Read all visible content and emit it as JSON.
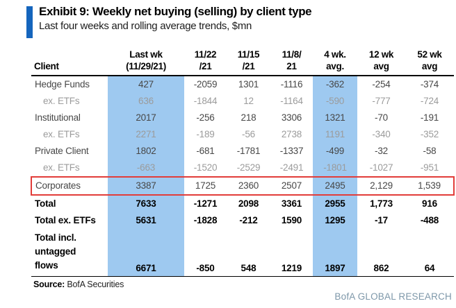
{
  "header": {
    "exhibit_title": "Exhibit 9: Weekly net buying (selling) by client type",
    "subtitle": "Last four weeks and rolling average trends, $mn"
  },
  "table": {
    "columns": [
      {
        "line1": "",
        "line2": "Client"
      },
      {
        "line1": "Last wk",
        "line2": "(11/29/21)",
        "highlight": true
      },
      {
        "line1": "11/22",
        "line2": "/21"
      },
      {
        "line1": "11/15",
        "line2": "/21"
      },
      {
        "line1": "11/8/",
        "line2": "21"
      },
      {
        "line1": "4 wk.",
        "line2": "avg.",
        "highlight": true
      },
      {
        "line1": "12 wk",
        "line2": "avg"
      },
      {
        "line1": "52 wk",
        "line2": "avg"
      }
    ],
    "rows": [
      {
        "client": "Hedge Funds",
        "style": "main",
        "values": [
          "427",
          "-2059",
          "1301",
          "-1116",
          "-362",
          "-254",
          "-374"
        ]
      },
      {
        "client": "ex. ETFs",
        "style": "sub",
        "values": [
          "636",
          "-1844",
          "12",
          "-1164",
          "-590",
          "-777",
          "-724"
        ]
      },
      {
        "client": "Institutional",
        "style": "main",
        "values": [
          "2017",
          "-256",
          "218",
          "3306",
          "1321",
          "-70",
          "-191"
        ]
      },
      {
        "client": "ex. ETFs",
        "style": "sub",
        "values": [
          "2271",
          "-189",
          "-56",
          "2738",
          "1191",
          "-340",
          "-352"
        ]
      },
      {
        "client": "Private Client",
        "style": "main",
        "values": [
          "1802",
          "-681",
          "-1781",
          "-1337",
          "-499",
          "-32",
          "-58"
        ]
      },
      {
        "client": "ex. ETFs",
        "style": "sub",
        "values": [
          "-663",
          "-1520",
          "-2529",
          "-2491",
          "-1801",
          "-1027",
          "-951"
        ]
      },
      {
        "client": "Corporates",
        "style": "main",
        "highlight_box": true,
        "values": [
          "3387",
          "1725",
          "2360",
          "2507",
          "2495",
          "2,129",
          "1,539"
        ]
      },
      {
        "client": "Total",
        "style": "total",
        "values": [
          "7633",
          "-1271",
          "2098",
          "3361",
          "2955",
          "1,773",
          "916"
        ]
      },
      {
        "client": "Total ex. ETFs",
        "style": "total",
        "values": [
          "5631",
          "-1828",
          "-212",
          "1590",
          "1295",
          "-17",
          "-488"
        ]
      },
      {
        "client": "Total incl. untagged flows",
        "style": "total",
        "label_lines": [
          "Total incl.",
          "untagged",
          "flows"
        ],
        "values": [
          "6671",
          "-850",
          "548",
          "1219",
          "1897",
          "862",
          "64"
        ]
      }
    ]
  },
  "footer": {
    "source_label": "Source:",
    "source_value": "BofA Securities",
    "brand": "BofA GLOBAL RESEARCH"
  },
  "colors": {
    "accent_blue": "#1565bd",
    "column_highlight_blue": "#9ec9f0",
    "callout_red": "#e23c39",
    "brand_text": "#7d97a9"
  }
}
